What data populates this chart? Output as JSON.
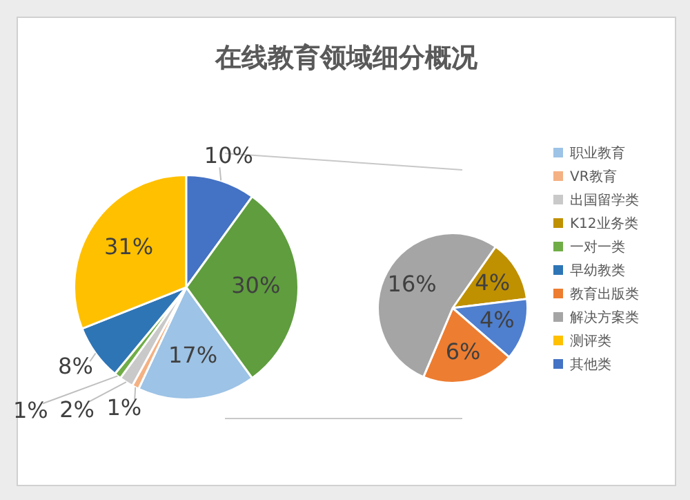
{
  "chart_data": {
    "type": "pie",
    "title": "在线教育领域细分概况",
    "categories": [
      "职业教育",
      "VR教育",
      "出国留学类",
      "K12业务类",
      null,
      "一对一类",
      "早幼教类",
      "教育出版类",
      "解决方案类",
      "测评类",
      "其他类",
      null
    ],
    "colors": [
      "#9dc3e6",
      "#f4b183",
      "#c9c9c9",
      "#bf9000",
      "#4f7fcf",
      "#70ad47",
      "#2e75b6",
      "#ed7d31",
      "#a5a5a5",
      "#ffc000",
      "#4472c4",
      "#5f9d3e"
    ],
    "series": [
      {
        "values": [
          17,
          1,
          2,
          null,
          null,
          1,
          8,
          null,
          null,
          31,
          10,
          30
        ],
        "value_labels": [
          "17%",
          "1%",
          "2%",
          null,
          null,
          "1%",
          "8%",
          null,
          null,
          "31%",
          "10%",
          "30%"
        ]
      },
      {
        "values": [
          null,
          null,
          null,
          4,
          4,
          null,
          null,
          6,
          16,
          null,
          null,
          null
        ],
        "value_labels": [
          null,
          null,
          null,
          "4%",
          "4%",
          null,
          null,
          "6%",
          "16%",
          null,
          null,
          null
        ]
      }
    ],
    "legend": "right"
  }
}
